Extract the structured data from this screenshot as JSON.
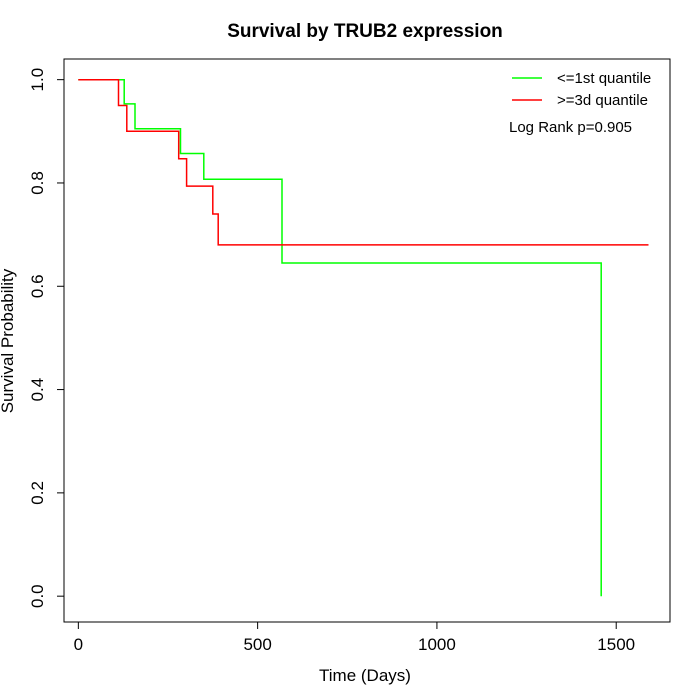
{
  "chart_data": {
    "type": "line",
    "subtype": "kaplan-meier-step",
    "title": "Survival by TRUB2 expression",
    "xlabel": "Time (Days)",
    "ylabel": "Survival Probability",
    "xlim": [
      -40,
      1650
    ],
    "ylim": [
      -0.05,
      1.04
    ],
    "xticks": [
      0,
      500,
      1000,
      1500
    ],
    "yticks": [
      0.0,
      0.2,
      0.4,
      0.6,
      0.8,
      1.0
    ],
    "xtick_labels": [
      "0",
      "500",
      "1000",
      "1500"
    ],
    "ytick_labels": [
      "0.0",
      "0.2",
      "0.4",
      "0.6",
      "0.8",
      "1.0"
    ],
    "grid": false,
    "legend_position": "top-right",
    "annotation": "Log Rank p=0.905",
    "series": [
      {
        "name": "<=1st quantile",
        "color": "#00ff00",
        "x": [
          0,
          128,
          128,
          158,
          158,
          285,
          285,
          350,
          350,
          568,
          568,
          1458,
          1458
        ],
        "y": [
          1.0,
          1.0,
          0.953,
          0.953,
          0.905,
          0.905,
          0.857,
          0.857,
          0.807,
          0.807,
          0.645,
          0.645,
          0.0
        ]
      },
      {
        "name": ">=3d quantile",
        "color": "#ff0000",
        "x": [
          0,
          112,
          112,
          135,
          135,
          280,
          280,
          302,
          302,
          375,
          375,
          390,
          390,
          1590
        ],
        "y": [
          1.0,
          1.0,
          0.95,
          0.95,
          0.9,
          0.9,
          0.847,
          0.847,
          0.794,
          0.794,
          0.74,
          0.74,
          0.68,
          0.68
        ]
      }
    ]
  }
}
